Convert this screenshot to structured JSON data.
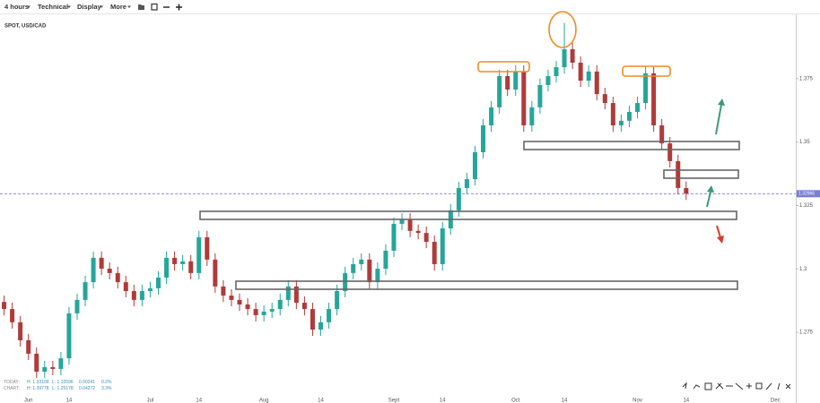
{
  "toolbar": {
    "items": [
      "4 hours",
      "Technical",
      "Display",
      "More"
    ]
  },
  "stats": {
    "today": [
      "TODAY:",
      "H: 1.33109",
      "L: 1.32596",
      "0.00241",
      "0.2%"
    ],
    "chart": [
      "CHART:",
      "H: 1.39778",
      "L: 1.25178",
      "0.04272",
      "3.3%"
    ]
  },
  "chart_data": {
    "type": "candlestick",
    "title": "SPOT, USD/CAD",
    "categories": [
      null,
      null,
      null,
      "Jun",
      null,
      null,
      null,
      null,
      "14",
      null,
      null,
      null,
      null,
      null,
      null,
      null,
      null,
      null,
      "Jul",
      null,
      null,
      null,
      null,
      null,
      "14",
      null,
      null,
      null,
      null,
      null,
      null,
      null,
      "Aug",
      null,
      null,
      null,
      null,
      null,
      null,
      "14",
      null,
      null,
      null,
      null,
      null,
      null,
      null,
      null,
      "Sept",
      null,
      null,
      null,
      null,
      null,
      "14",
      null,
      null,
      null,
      null,
      null,
      null,
      null,
      null,
      "Oct",
      null,
      null,
      null,
      null,
      null,
      "14",
      null,
      null,
      null,
      null,
      null,
      null,
      null,
      null,
      "Nov",
      null,
      null,
      null,
      null,
      null,
      "14",
      null,
      null,
      null,
      null,
      null,
      null,
      null,
      null,
      null,
      null,
      "Dec",
      null,
      null
    ],
    "open": [
      1.287,
      1.2842,
      1.279,
      1.2719,
      1.2666,
      1.2595,
      1.2613,
      1.2606,
      1.2648,
      1.2825,
      1.2878,
      1.2948,
      1.3044,
      1.3001,
      1.2984,
      1.2948,
      1.2913,
      1.2878,
      1.2913,
      1.2924,
      1.2966,
      1.3044,
      1.3019,
      1.303,
      1.2984,
      1.3125,
      1.3037,
      1.2931,
      1.2895,
      1.2878,
      1.286,
      1.2842,
      1.2818,
      1.2832,
      1.2842,
      1.2878,
      1.2931,
      1.2867,
      1.2842,
      1.2761,
      1.279,
      1.2842,
      1.2913,
      1.2984,
      1.3019,
      1.3037,
      1.2948,
      1.3001,
      1.3072,
      1.3178,
      1.3195,
      1.315,
      1.3142,
      1.3107,
      1.3019,
      1.316,
      1.3231,
      1.3319,
      1.3354,
      1.346,
      1.3566,
      1.3637,
      1.376,
      1.3707,
      1.3778,
      1.3566,
      1.3637,
      1.3725,
      1.376,
      1.3795,
      1.3866,
      1.3813,
      1.3742,
      1.3778,
      1.3689,
      1.3654,
      1.3566,
      1.3584,
      1.3619,
      1.3654,
      1.3771,
      1.3566,
      1.3495,
      1.3425,
      1.3319,
      null,
      null,
      null,
      null,
      null,
      null,
      null,
      null,
      null,
      null,
      null,
      null,
      null
    ],
    "high": [
      1.2895,
      1.2867,
      1.2815,
      1.2744,
      1.2691,
      1.2638,
      1.2638,
      1.2673,
      1.285,
      1.2903,
      1.2973,
      1.3069,
      1.3069,
      1.3026,
      1.3009,
      1.2973,
      1.2938,
      1.2938,
      1.2949,
      1.2991,
      1.3069,
      1.3069,
      1.3055,
      1.3055,
      1.315,
      1.315,
      1.3062,
      1.2956,
      1.292,
      1.2903,
      1.2885,
      1.2867,
      1.2857,
      1.2867,
      1.2903,
      1.2956,
      1.2956,
      1.2892,
      1.2867,
      1.2815,
      1.2867,
      1.2938,
      1.3009,
      1.3044,
      1.3062,
      1.3062,
      1.3026,
      1.3097,
      1.3203,
      1.322,
      1.322,
      1.3175,
      1.3167,
      1.3132,
      1.3185,
      1.3256,
      1.3344,
      1.3379,
      1.3485,
      1.3591,
      1.3662,
      1.3785,
      1.3785,
      1.3803,
      1.3803,
      1.3662,
      1.375,
      1.3785,
      1.382,
      1.397,
      1.3891,
      1.3838,
      1.3803,
      1.3803,
      1.3714,
      1.3679,
      1.3609,
      1.3644,
      1.3679,
      1.3796,
      1.3796,
      1.3591,
      1.352,
      1.345,
      1.3344,
      null,
      null,
      null,
      null,
      null,
      null,
      null,
      null,
      null,
      null,
      null,
      null,
      null
    ],
    "low": [
      1.2817,
      1.2765,
      1.2694,
      1.2641,
      1.257,
      1.257,
      1.2581,
      1.2581,
      1.2623,
      1.28,
      1.2853,
      1.2923,
      1.2976,
      1.2959,
      1.2923,
      1.2888,
      1.2853,
      1.2853,
      1.2888,
      1.2899,
      1.2941,
      1.2994,
      1.2994,
      1.2959,
      1.2959,
      1.3012,
      1.2906,
      1.287,
      1.2853,
      1.2835,
      1.2817,
      1.2793,
      1.2793,
      1.2807,
      1.2817,
      1.2853,
      1.2842,
      1.2817,
      1.2736,
      1.2736,
      1.2765,
      1.2817,
      1.2888,
      1.2959,
      1.2994,
      1.2923,
      1.2923,
      1.2976,
      1.3047,
      1.3153,
      1.3125,
      1.3117,
      1.3082,
      1.2994,
      1.2994,
      1.3135,
      1.3206,
      1.3294,
      1.3329,
      1.3435,
      1.3541,
      1.3612,
      1.3682,
      1.3682,
      1.3541,
      1.3541,
      1.3612,
      1.37,
      1.3735,
      1.377,
      1.3788,
      1.3717,
      1.3717,
      1.3664,
      1.3629,
      1.3541,
      1.3541,
      1.3559,
      1.3594,
      1.3629,
      1.3541,
      1.347,
      1.34,
      1.3294,
      1.3272,
      null,
      null,
      null,
      null,
      null,
      null,
      null,
      null,
      null,
      null,
      null,
      null,
      null
    ],
    "close": [
      1.2842,
      1.279,
      1.2719,
      1.2666,
      1.2595,
      1.2613,
      1.2606,
      1.2648,
      1.2825,
      1.2878,
      1.2948,
      1.3044,
      1.3001,
      1.2984,
      1.2948,
      1.2913,
      1.2878,
      1.2913,
      1.2924,
      1.2966,
      1.3044,
      1.3019,
      1.303,
      1.2984,
      1.3125,
      1.3037,
      1.2931,
      1.2895,
      1.2878,
      1.286,
      1.2842,
      1.2818,
      1.2832,
      1.2842,
      1.2878,
      1.2931,
      1.2867,
      1.2842,
      1.2761,
      1.279,
      1.2842,
      1.2913,
      1.2984,
      1.3019,
      1.3037,
      1.2948,
      1.3001,
      1.3072,
      1.3178,
      1.3195,
      1.315,
      1.3142,
      1.3107,
      1.3019,
      1.316,
      1.3231,
      1.3319,
      1.3354,
      1.346,
      1.3566,
      1.3637,
      1.376,
      1.3707,
      1.3778,
      1.3566,
      1.3637,
      1.3725,
      1.376,
      1.3795,
      1.3866,
      1.3813,
      1.3742,
      1.3778,
      1.3689,
      1.3654,
      1.3566,
      1.3584,
      1.3619,
      1.3654,
      1.3771,
      1.3566,
      1.3495,
      1.3425,
      1.3319,
      1.3297,
      null,
      null,
      null,
      null,
      null,
      null,
      null,
      null,
      null,
      null,
      null,
      null,
      null
    ],
    "up_color": "#26a69a",
    "down_color": "#b03a3a",
    "current_price": 1.32966,
    "current_price_color": "#7b7fd4",
    "ylim": [
      1.25,
      1.4
    ],
    "yticks": [
      1.275,
      1.3,
      1.325,
      1.35,
      1.375
    ],
    "grid": false
  }
}
